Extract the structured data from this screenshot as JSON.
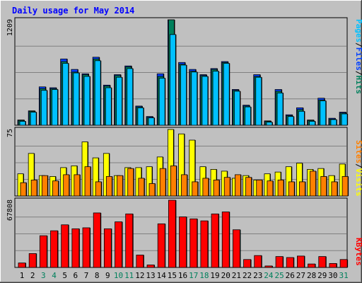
{
  "chart_data": [
    {
      "type": "bar",
      "title": "Daily usage for May 2014",
      "ymax_label": "1209",
      "ylabel_parts": [
        "Pages",
        "/",
        "Files",
        "/",
        "Hits"
      ],
      "ylabel_colors": [
        "#00c0ff",
        "#000000",
        "#0040ff",
        "#000000",
        "#00805c"
      ],
      "categories": [
        "1",
        "2",
        "3",
        "4",
        "5",
        "6",
        "7",
        "8",
        "9",
        "10",
        "11",
        "12",
        "13",
        "14",
        "15",
        "16",
        "17",
        "18",
        "19",
        "20",
        "21",
        "22",
        "23",
        "24",
        "25",
        "26",
        "27",
        "28",
        "29",
        "30",
        "31"
      ],
      "weekend_days": [
        "3",
        "4",
        "10",
        "11",
        "17",
        "18",
        "24",
        "25",
        "31"
      ],
      "series": [
        {
          "name": "Hits",
          "color": "#0040ff",
          "values": [
            60,
            165,
            440,
            430,
            760,
            640,
            590,
            780,
            460,
            580,
            680,
            220,
            100,
            590,
            1209,
            720,
            640,
            580,
            650,
            730,
            410,
            230,
            580,
            50,
            410,
            120,
            200,
            60,
            310,
            80,
            150
          ]
        },
        {
          "name": "Files",
          "color": "#00805c",
          "values": [
            55,
            160,
            420,
            420,
            730,
            610,
            580,
            760,
            450,
            570,
            670,
            210,
            90,
            560,
            1209,
            700,
            620,
            570,
            640,
            720,
            400,
            220,
            560,
            45,
            390,
            110,
            180,
            55,
            290,
            70,
            140
          ]
        },
        {
          "name": "Pages",
          "color": "#00c0ff",
          "values": [
            45,
            150,
            400,
            410,
            710,
            600,
            560,
            740,
            430,
            550,
            650,
            200,
            85,
            540,
            1040,
            690,
            610,
            560,
            620,
            710,
            390,
            210,
            550,
            35,
            370,
            100,
            160,
            45,
            280,
            65,
            130
          ]
        }
      ],
      "ymax": 1209
    },
    {
      "type": "bar",
      "ymax_label": "75",
      "ylabel_parts": [
        "Sites",
        "/",
        "Visits"
      ],
      "ylabel_colors": [
        "#ff8000",
        "#000000",
        "#ffff00"
      ],
      "series": [
        {
          "name": "Visits",
          "color": "#ffff00",
          "values": [
            25,
            48,
            23,
            22,
            32,
            34,
            61,
            43,
            48,
            23,
            32,
            32,
            33,
            44,
            75,
            70,
            63,
            33,
            30,
            28,
            20,
            23,
            18,
            25,
            27,
            33,
            37,
            30,
            31,
            23,
            36
          ]
        },
        {
          "name": "Sites",
          "color": "#ff8000",
          "values": [
            15,
            18,
            23,
            17,
            24,
            24,
            33,
            16,
            22,
            23,
            31,
            20,
            14,
            31,
            34,
            24,
            16,
            20,
            18,
            21,
            24,
            21,
            18,
            17,
            18,
            16,
            16,
            28,
            22,
            16,
            22
          ]
        }
      ],
      "ymax": 75
    },
    {
      "type": "bar",
      "ymax_label": "67808",
      "ylabel_parts": [
        "KBytes"
      ],
      "ylabel_colors": [
        "#ff0000"
      ],
      "series": [
        {
          "name": "KBytes",
          "color": "#ff0000",
          "values": [
            4500,
            14000,
            32000,
            37000,
            43000,
            39000,
            40000,
            55000,
            39000,
            46000,
            54000,
            12500,
            2500,
            44000,
            67808,
            51000,
            49000,
            47000,
            54000,
            56000,
            38000,
            8000,
            12000,
            1500,
            11000,
            10000,
            11500,
            3500,
            11000,
            4000,
            8000
          ]
        }
      ],
      "ymax": 67808
    }
  ]
}
